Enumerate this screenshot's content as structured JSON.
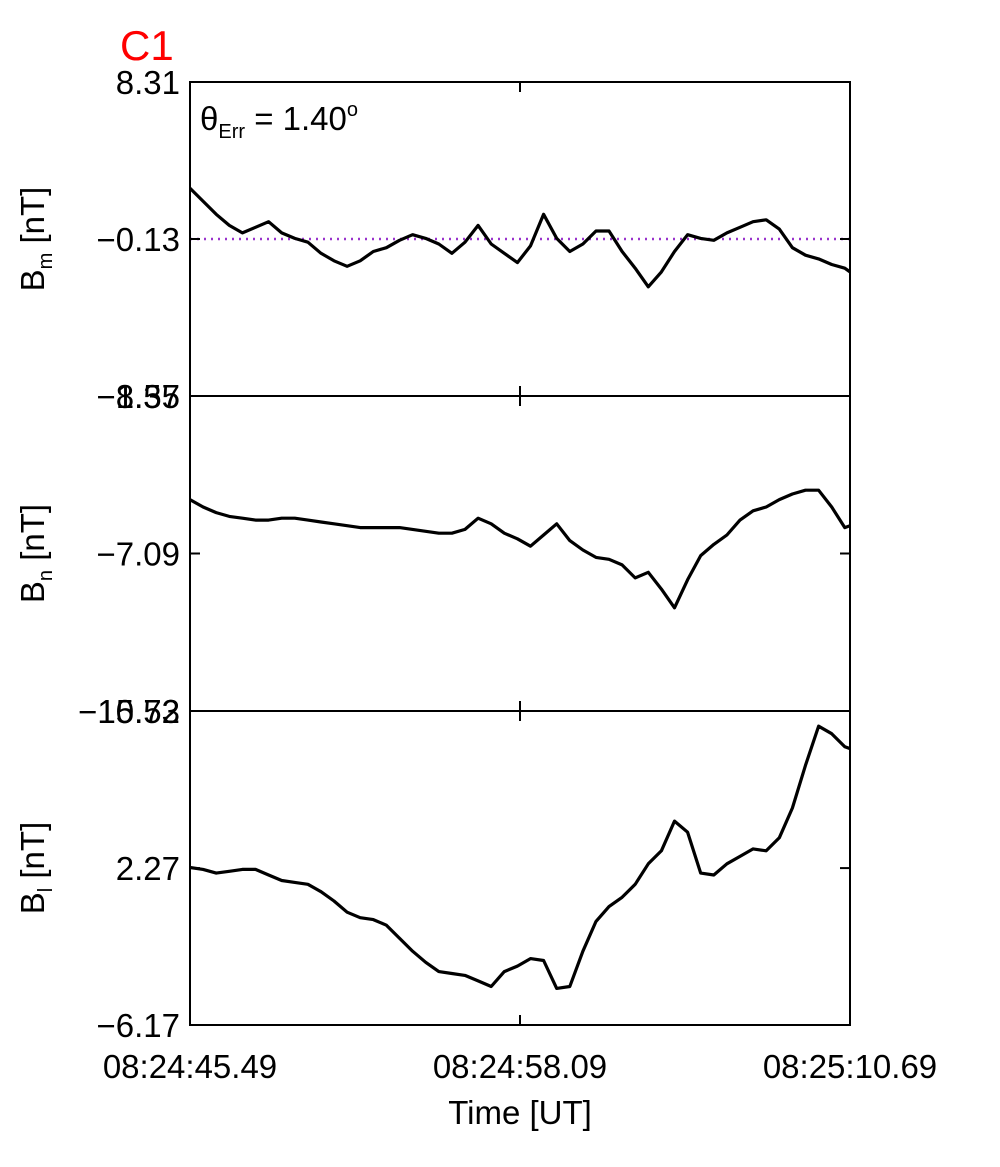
{
  "figure": {
    "panel_label": "C1",
    "panel_label_color": "#ff0000",
    "annotation": {
      "symbol": "θ",
      "subscript": "Err",
      "text": " =  1.40",
      "superscript": "o"
    },
    "xlabel": "Time [UT]"
  },
  "chart_data": [
    {
      "type": "line",
      "name": "Bm",
      "ylabel": {
        "main": "B",
        "sub": "m",
        "unit": " [nT]"
      },
      "xlim_labels": [
        "08:24:45.49",
        "08:24:58.09",
        "08:25:10.69"
      ],
      "xlim": [
        0,
        25.2
      ],
      "ylim": [
        -8.57,
        8.31
      ],
      "yticks": [
        "8.31",
        "−0.13",
        "−8.57"
      ],
      "ytick_values": [
        8.31,
        -0.13,
        -8.57
      ],
      "reference_line": {
        "y": -0.13,
        "color": "#9933cc",
        "style": "dotted"
      },
      "line_color": "#000000",
      "x": [
        0,
        0.5,
        1,
        1.5,
        2,
        2.5,
        3,
        3.5,
        4,
        4.5,
        5,
        5.5,
        6,
        6.5,
        7,
        7.5,
        8,
        8.5,
        9,
        9.5,
        10,
        10.5,
        11,
        11.5,
        12,
        12.5,
        13,
        13.5,
        14,
        14.5,
        15,
        15.5,
        16,
        16.5,
        17,
        17.5,
        18,
        18.5,
        19,
        19.5,
        20,
        20.5,
        21,
        21.5,
        22,
        22.5,
        23,
        23.5,
        24,
        24.5,
        25,
        25.2
      ],
      "y": [
        2.6,
        1.9,
        1.2,
        0.6,
        0.2,
        0.5,
        0.8,
        0.2,
        -0.1,
        -0.3,
        -0.9,
        -1.3,
        -1.6,
        -1.3,
        -0.8,
        -0.6,
        -0.2,
        0.1,
        -0.1,
        -0.4,
        -0.9,
        -0.3,
        0.6,
        -0.4,
        -0.9,
        -1.4,
        -0.5,
        1.2,
        -0.1,
        -0.8,
        -0.4,
        0.3,
        0.3,
        -0.8,
        -1.7,
        -2.7,
        -1.9,
        -0.8,
        0.1,
        -0.1,
        -0.2,
        0.2,
        0.5,
        0.8,
        0.9,
        0.4,
        -0.6,
        -1.0,
        -1.2,
        -1.5,
        -1.7,
        -1.9
      ]
    },
    {
      "type": "line",
      "name": "Bn",
      "ylabel": {
        "main": "B",
        "sub": "n",
        "unit": " [nT]"
      },
      "xlim": [
        0,
        25.2
      ],
      "ylim": [
        -15.53,
        1.35
      ],
      "yticks": [
        "1.35",
        "−7.09",
        "−15.53"
      ],
      "ytick_values": [
        1.35,
        -7.09,
        -15.53
      ],
      "line_color": "#000000",
      "x": [
        0,
        0.5,
        1,
        1.5,
        2,
        2.5,
        3,
        3.5,
        4,
        4.5,
        5,
        5.5,
        6,
        6.5,
        7,
        7.5,
        8,
        8.5,
        9,
        9.5,
        10,
        10.5,
        11,
        11.5,
        12,
        12.5,
        13,
        13.5,
        14,
        14.5,
        15,
        15.5,
        16,
        16.5,
        17,
        17.5,
        18,
        18.5,
        19,
        19.5,
        20,
        20.5,
        21,
        21.5,
        22,
        22.5,
        23,
        23.5,
        24,
        24.5,
        25,
        25.2
      ],
      "y": [
        -4.2,
        -4.6,
        -4.9,
        -5.1,
        -5.2,
        -5.3,
        -5.3,
        -5.2,
        -5.2,
        -5.3,
        -5.4,
        -5.5,
        -5.6,
        -5.7,
        -5.7,
        -5.7,
        -5.7,
        -5.8,
        -5.9,
        -6.0,
        -6.0,
        -5.8,
        -5.2,
        -5.5,
        -6.0,
        -6.3,
        -6.7,
        -6.1,
        -5.5,
        -6.4,
        -6.9,
        -7.3,
        -7.4,
        -7.7,
        -8.4,
        -8.1,
        -9.0,
        -10.0,
        -8.5,
        -7.2,
        -6.6,
        -6.1,
        -5.3,
        -4.8,
        -4.6,
        -4.2,
        -3.9,
        -3.7,
        -3.7,
        -4.6,
        -5.7,
        -5.6
      ]
    },
    {
      "type": "line",
      "name": "Bl",
      "ylabel": {
        "main": "B",
        "sub": "l",
        "unit": " [nT]"
      },
      "xlim": [
        0,
        25.2
      ],
      "ylim": [
        -6.17,
        10.72
      ],
      "yticks": [
        "10.72",
        "2.27",
        "−6.17"
      ],
      "ytick_values": [
        10.72,
        2.27,
        -6.17
      ],
      "line_color": "#000000",
      "x": [
        0,
        0.5,
        1,
        1.5,
        2,
        2.5,
        3,
        3.5,
        4,
        4.5,
        5,
        5.5,
        6,
        6.5,
        7,
        7.5,
        8,
        8.5,
        9,
        9.5,
        10,
        10.5,
        11,
        11.5,
        12,
        12.5,
        13,
        13.5,
        14,
        14.5,
        15,
        15.5,
        16,
        16.5,
        17,
        17.5,
        18,
        18.5,
        19,
        19.5,
        20,
        20.5,
        21,
        21.5,
        22,
        22.5,
        23,
        23.5,
        24,
        24.5,
        25,
        25.2
      ],
      "y": [
        2.3,
        2.2,
        2.0,
        2.1,
        2.2,
        2.2,
        1.9,
        1.6,
        1.5,
        1.4,
        1.0,
        0.5,
        -0.1,
        -0.4,
        -0.5,
        -0.8,
        -1.5,
        -2.2,
        -2.8,
        -3.3,
        -3.4,
        -3.5,
        -3.8,
        -4.1,
        -3.3,
        -3.0,
        -2.6,
        -2.7,
        -4.2,
        -4.1,
        -2.2,
        -0.6,
        0.2,
        0.7,
        1.4,
        2.5,
        3.2,
        4.8,
        4.2,
        2.0,
        1.9,
        2.5,
        2.9,
        3.3,
        3.2,
        3.9,
        5.5,
        7.8,
        9.9,
        9.5,
        8.8,
        8.7
      ]
    }
  ]
}
